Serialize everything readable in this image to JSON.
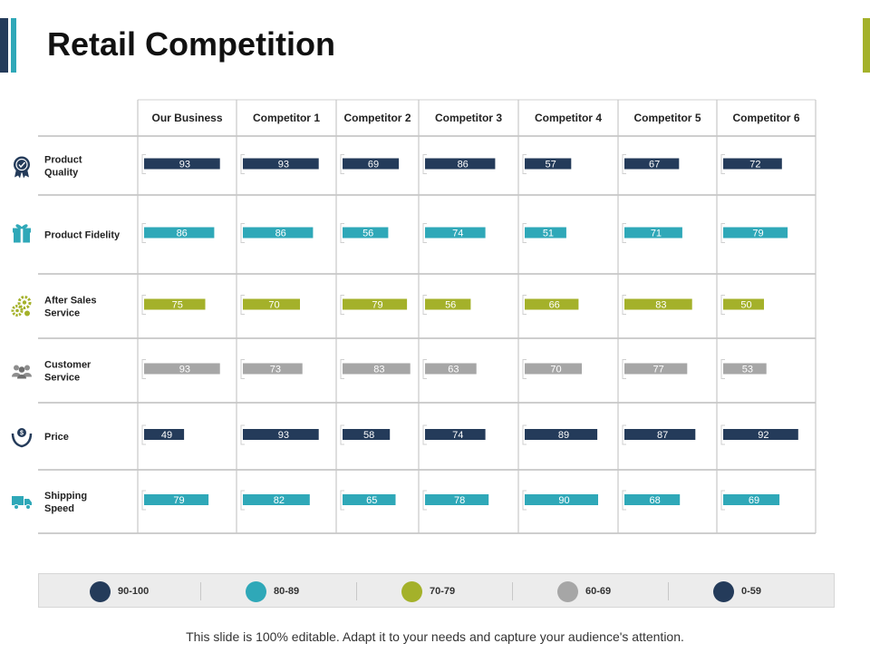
{
  "title": "Retail Competition",
  "footer": "This slide is 100% editable. Adapt it to your needs and capture your audience's attention.",
  "colors": {
    "navy": "#243b5a",
    "teal": "#2fa8b8",
    "olive": "#a4b12a",
    "gray": "#a6a6a6"
  },
  "legend": [
    {
      "label": "90-100",
      "color": "#243b5a"
    },
    {
      "label": "80-89",
      "color": "#2fa8b8"
    },
    {
      "label": "70-79",
      "color": "#a4b12a"
    },
    {
      "label": "60-69",
      "color": "#a6a6a6"
    },
    {
      "label": "0-59",
      "color": "#243b5a"
    }
  ],
  "chart_data": {
    "type": "table",
    "title": "Retail Competition",
    "columns": [
      "Our Business",
      "Competitor 1",
      "Competitor 2",
      "Competitor 3",
      "Competitor 4",
      "Competitor 5",
      "Competitor 6"
    ],
    "rows": [
      {
        "label": "Product Quality",
        "icon": "award-ribbon-icon",
        "color": "#243b5a",
        "values": [
          93,
          93,
          69,
          86,
          57,
          67,
          72
        ]
      },
      {
        "label": "Product Fidelity",
        "icon": "gift-box-icon",
        "color": "#2fa8b8",
        "values": [
          86,
          86,
          56,
          74,
          51,
          71,
          79
        ]
      },
      {
        "label": "After Sales Service",
        "icon": "gears-icon",
        "color": "#a4b12a",
        "values": [
          75,
          70,
          79,
          56,
          66,
          83,
          50
        ]
      },
      {
        "label": "Customer Service",
        "icon": "people-group-icon",
        "color": "#a6a6a6",
        "values": [
          93,
          73,
          83,
          63,
          70,
          77,
          53
        ]
      },
      {
        "label": "Price",
        "icon": "money-hand-icon",
        "color": "#243b5a",
        "values": [
          49,
          93,
          58,
          74,
          89,
          87,
          92
        ]
      },
      {
        "label": "Shipping Speed",
        "icon": "delivery-truck-icon",
        "color": "#2fa8b8",
        "values": [
          79,
          82,
          65,
          78,
          90,
          68,
          69
        ]
      }
    ]
  }
}
